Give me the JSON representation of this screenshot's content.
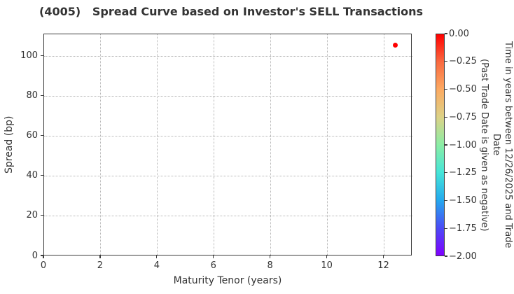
{
  "chart_data": {
    "type": "scatter",
    "title": "(4005)   Spread Curve based on Investor's SELL Transactions",
    "xlabel": "Maturity Tenor (years)",
    "ylabel": "Spread (bp)",
    "xlim": [
      0,
      13
    ],
    "ylim": [
      0,
      111
    ],
    "xticks": [
      0,
      2,
      4,
      6,
      8,
      10,
      12
    ],
    "yticks": [
      0,
      20,
      40,
      60,
      80,
      100
    ],
    "grid": true,
    "grid_style": "dotted",
    "legend_position": "none",
    "points": [
      {
        "x": 12.4,
        "y": 105.5,
        "color_value": 0.0,
        "color": "#ff0000"
      }
    ],
    "colorbar": {
      "vmin": -2.0,
      "vmax": 0.0,
      "tick_labels": [
        "0.00",
        "−0.25",
        "−0.50",
        "−0.75",
        "−1.00",
        "−1.25",
        "−1.50",
        "−1.75",
        "−2.00"
      ],
      "label_line1": "Time in years between 12/26/2025 and Trade Date",
      "label_line2": "(Past Trade Date is given as negative)",
      "colormap": "rainbow",
      "gradient_top_to_bottom": [
        "#ff0000",
        "#fa6a40",
        "#fcaa62",
        "#dcd287",
        "#8beda5",
        "#45e5d8",
        "#24a9ee",
        "#4b4bf5",
        "#7f00ff"
      ]
    },
    "accent_colors": {
      "point_red": "#ff0000",
      "grid_gray": "#b3b3b3",
      "axis_gray": "#3c3c3c"
    }
  }
}
